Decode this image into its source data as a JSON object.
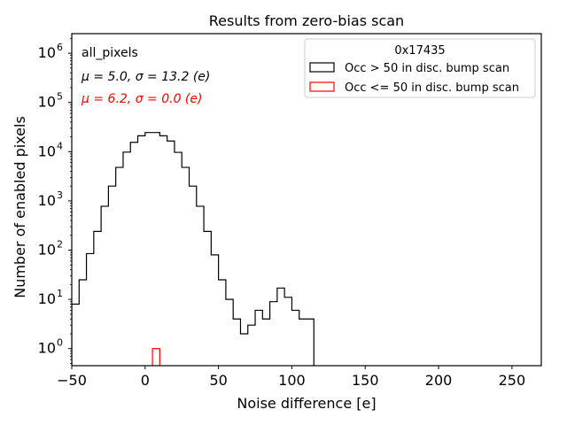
{
  "chart_data": {
    "type": "histogram",
    "title": "Results from zero-bias scan",
    "xlabel": "Noise difference [e]",
    "ylabel": "Number of enabled pixels",
    "xlim": [
      -50,
      270
    ],
    "ylim": [
      0.45,
      2500000
    ],
    "yscale": "log",
    "grid": false,
    "legend_placement": "top-right",
    "x_ticks": [
      -50,
      0,
      50,
      100,
      150,
      200,
      250
    ],
    "x_tick_labels": [
      "−50",
      "0",
      "50",
      "100",
      "150",
      "200",
      "250"
    ],
    "y_ticks": [
      1,
      10,
      100,
      1000,
      10000,
      100000,
      1000000
    ],
    "y_tick_labels": [
      {
        "base": "10",
        "exp": "0"
      },
      {
        "base": "10",
        "exp": "1"
      },
      {
        "base": "10",
        "exp": "2"
      },
      {
        "base": "10",
        "exp": "3"
      },
      {
        "base": "10",
        "exp": "4"
      },
      {
        "base": "10",
        "exp": "5"
      },
      {
        "base": "10",
        "exp": "6"
      }
    ],
    "legend_title": "0x17435",
    "stats_header": "all_pixels",
    "series": [
      {
        "name": "Occ > 50 in disc. bump scan",
        "color": "#000000",
        "stats": "μ = 5.0, σ = 13.2 (e)",
        "bin_edges": [
          -50,
          -45,
          -40,
          -35,
          -30,
          -25,
          -20,
          -15,
          -10,
          -5,
          0,
          5,
          10,
          15,
          20,
          25,
          30,
          35,
          40,
          45,
          50,
          55,
          60,
          65,
          70,
          75,
          80,
          85,
          90,
          95,
          100,
          105,
          110,
          115
        ],
        "counts": [
          8,
          25,
          85,
          240,
          780,
          2000,
          4800,
          9800,
          15500,
          21000,
          24500,
          24500,
          21000,
          16500,
          9700,
          4800,
          2000,
          780,
          240,
          80,
          25,
          10,
          4,
          2,
          3,
          6,
          4,
          9,
          17,
          11,
          6,
          4,
          4
        ]
      },
      {
        "name": "Occ <= 50 in disc. bump scan",
        "color": "#ff0000",
        "stats": "μ = 6.2, σ = 0.0 (e)",
        "bin_edges": [
          5,
          10
        ],
        "counts": [
          1
        ]
      }
    ]
  }
}
